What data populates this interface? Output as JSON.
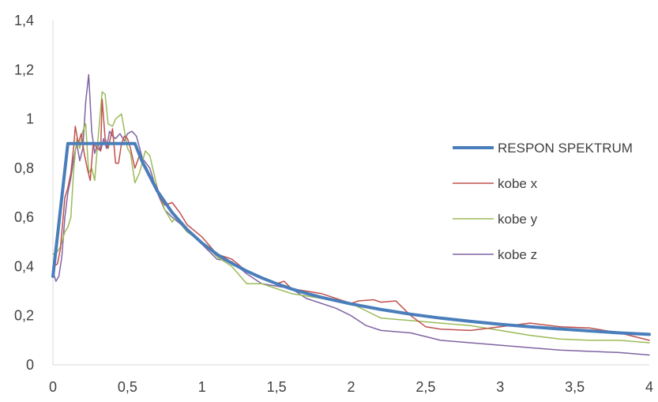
{
  "chart_data": {
    "type": "line",
    "title": "",
    "xlabel": "",
    "ylabel": "",
    "xlim": [
      0,
      4
    ],
    "ylim": [
      0,
      1.4
    ],
    "x_ticks": [
      "0",
      "0,5",
      "1",
      "1,5",
      "2",
      "2,5",
      "3",
      "3,5",
      "4"
    ],
    "x_tick_values": [
      0,
      0.5,
      1,
      1.5,
      2,
      2.5,
      3,
      3.5,
      4
    ],
    "y_ticks": [
      "0",
      "0,2",
      "0,4",
      "0,6",
      "0,8",
      "1",
      "1,2",
      "1,4"
    ],
    "y_tick_values": [
      0,
      0.2,
      0.4,
      0.6,
      0.8,
      1.0,
      1.2,
      1.4
    ],
    "grid": false,
    "legend_position": "right",
    "series": [
      {
        "name": "RESPON SPEKTRUM",
        "color": "#4a7ebb",
        "width": 4,
        "points": [
          [
            0,
            0.36
          ],
          [
            0.1,
            0.9
          ],
          [
            0.55,
            0.9
          ],
          [
            0.6,
            0.825
          ],
          [
            0.7,
            0.707
          ],
          [
            0.8,
            0.619
          ],
          [
            0.9,
            0.55
          ],
          [
            1.0,
            0.495
          ],
          [
            1.1,
            0.45
          ],
          [
            1.2,
            0.413
          ],
          [
            1.3,
            0.381
          ],
          [
            1.4,
            0.354
          ],
          [
            1.5,
            0.33
          ],
          [
            1.6,
            0.309
          ],
          [
            1.7,
            0.291
          ],
          [
            1.8,
            0.275
          ],
          [
            1.9,
            0.261
          ],
          [
            2.0,
            0.248
          ],
          [
            2.2,
            0.225
          ],
          [
            2.4,
            0.206
          ],
          [
            2.6,
            0.19
          ],
          [
            2.8,
            0.177
          ],
          [
            3.0,
            0.165
          ],
          [
            3.2,
            0.155
          ],
          [
            3.4,
            0.146
          ],
          [
            3.6,
            0.138
          ],
          [
            3.8,
            0.13
          ],
          [
            4.0,
            0.124
          ]
        ]
      },
      {
        "name": "kobe x",
        "color": "#c0504d",
        "width": 1.5,
        "points": [
          [
            0,
            0.4
          ],
          [
            0.03,
            0.41
          ],
          [
            0.05,
            0.47
          ],
          [
            0.08,
            0.68
          ],
          [
            0.1,
            0.72
          ],
          [
            0.12,
            0.78
          ],
          [
            0.14,
            0.89
          ],
          [
            0.15,
            0.97
          ],
          [
            0.17,
            0.9
          ],
          [
            0.19,
            0.94
          ],
          [
            0.21,
            0.86
          ],
          [
            0.23,
            0.8
          ],
          [
            0.25,
            0.75
          ],
          [
            0.27,
            0.9
          ],
          [
            0.3,
            0.88
          ],
          [
            0.32,
            0.87
          ],
          [
            0.33,
            1.08
          ],
          [
            0.35,
            0.92
          ],
          [
            0.37,
            0.88
          ],
          [
            0.4,
            0.96
          ],
          [
            0.42,
            0.82
          ],
          [
            0.44,
            0.82
          ],
          [
            0.46,
            0.9
          ],
          [
            0.48,
            0.93
          ],
          [
            0.5,
            0.92
          ],
          [
            0.52,
            0.88
          ],
          [
            0.55,
            0.8
          ],
          [
            0.58,
            0.85
          ],
          [
            0.6,
            0.83
          ],
          [
            0.63,
            0.8
          ],
          [
            0.66,
            0.76
          ],
          [
            0.7,
            0.72
          ],
          [
            0.72,
            0.68
          ],
          [
            0.75,
            0.65
          ],
          [
            0.8,
            0.66
          ],
          [
            0.85,
            0.62
          ],
          [
            0.9,
            0.57
          ],
          [
            1.0,
            0.52
          ],
          [
            1.1,
            0.45
          ],
          [
            1.2,
            0.43
          ],
          [
            1.3,
            0.38
          ],
          [
            1.4,
            0.35
          ],
          [
            1.5,
            0.33
          ],
          [
            1.55,
            0.34
          ],
          [
            1.6,
            0.31
          ],
          [
            1.7,
            0.3
          ],
          [
            1.8,
            0.29
          ],
          [
            1.9,
            0.27
          ],
          [
            2.0,
            0.25
          ],
          [
            2.05,
            0.26
          ],
          [
            2.15,
            0.265
          ],
          [
            2.2,
            0.255
          ],
          [
            2.3,
            0.26
          ],
          [
            2.4,
            0.2
          ],
          [
            2.5,
            0.155
          ],
          [
            2.6,
            0.145
          ],
          [
            2.8,
            0.14
          ],
          [
            3.0,
            0.155
          ],
          [
            3.2,
            0.17
          ],
          [
            3.4,
            0.155
          ],
          [
            3.6,
            0.15
          ],
          [
            3.8,
            0.13
          ],
          [
            4.0,
            0.1
          ]
        ]
      },
      {
        "name": "kobe y",
        "color": "#9bbb59",
        "width": 1.5,
        "points": [
          [
            0,
            0.45
          ],
          [
            0.03,
            0.46
          ],
          [
            0.05,
            0.48
          ],
          [
            0.08,
            0.54
          ],
          [
            0.1,
            0.56
          ],
          [
            0.12,
            0.6
          ],
          [
            0.14,
            0.8
          ],
          [
            0.16,
            0.92
          ],
          [
            0.18,
            0.88
          ],
          [
            0.2,
            0.95
          ],
          [
            0.22,
            0.98
          ],
          [
            0.24,
            0.78
          ],
          [
            0.26,
            0.8
          ],
          [
            0.28,
            0.75
          ],
          [
            0.3,
            0.9
          ],
          [
            0.33,
            1.11
          ],
          [
            0.35,
            1.1
          ],
          [
            0.37,
            0.98
          ],
          [
            0.4,
            0.97
          ],
          [
            0.42,
            1.0
          ],
          [
            0.44,
            1.01
          ],
          [
            0.46,
            1.02
          ],
          [
            0.48,
            0.95
          ],
          [
            0.5,
            0.88
          ],
          [
            0.52,
            0.86
          ],
          [
            0.55,
            0.74
          ],
          [
            0.58,
            0.78
          ],
          [
            0.62,
            0.87
          ],
          [
            0.65,
            0.85
          ],
          [
            0.7,
            0.72
          ],
          [
            0.75,
            0.63
          ],
          [
            0.8,
            0.58
          ],
          [
            0.82,
            0.6
          ],
          [
            0.9,
            0.54
          ],
          [
            1.0,
            0.5
          ],
          [
            1.1,
            0.44
          ],
          [
            1.2,
            0.4
          ],
          [
            1.3,
            0.33
          ],
          [
            1.4,
            0.33
          ],
          [
            1.5,
            0.31
          ],
          [
            1.6,
            0.29
          ],
          [
            1.7,
            0.28
          ],
          [
            1.8,
            0.27
          ],
          [
            1.9,
            0.26
          ],
          [
            2.0,
            0.25
          ],
          [
            2.1,
            0.22
          ],
          [
            2.2,
            0.19
          ],
          [
            2.4,
            0.18
          ],
          [
            2.6,
            0.17
          ],
          [
            2.8,
            0.16
          ],
          [
            3.0,
            0.14
          ],
          [
            3.2,
            0.12
          ],
          [
            3.4,
            0.105
          ],
          [
            3.6,
            0.1
          ],
          [
            3.8,
            0.1
          ],
          [
            4.0,
            0.09
          ]
        ]
      },
      {
        "name": "kobe z",
        "color": "#8064a2",
        "width": 1.5,
        "points": [
          [
            0,
            0.38
          ],
          [
            0.02,
            0.34
          ],
          [
            0.04,
            0.36
          ],
          [
            0.06,
            0.44
          ],
          [
            0.08,
            0.6
          ],
          [
            0.1,
            0.7
          ],
          [
            0.12,
            0.76
          ],
          [
            0.14,
            0.84
          ],
          [
            0.16,
            0.9
          ],
          [
            0.18,
            0.83
          ],
          [
            0.2,
            0.88
          ],
          [
            0.22,
            1.07
          ],
          [
            0.24,
            1.18
          ],
          [
            0.26,
            0.95
          ],
          [
            0.28,
            0.86
          ],
          [
            0.3,
            0.9
          ],
          [
            0.32,
            0.87
          ],
          [
            0.34,
            0.92
          ],
          [
            0.36,
            0.88
          ],
          [
            0.38,
            0.95
          ],
          [
            0.4,
            0.93
          ],
          [
            0.42,
            0.92
          ],
          [
            0.45,
            0.94
          ],
          [
            0.48,
            0.91
          ],
          [
            0.5,
            0.94
          ],
          [
            0.53,
            0.95
          ],
          [
            0.56,
            0.93
          ],
          [
            0.6,
            0.84
          ],
          [
            0.65,
            0.8
          ],
          [
            0.7,
            0.7
          ],
          [
            0.75,
            0.63
          ],
          [
            0.8,
            0.6
          ],
          [
            0.9,
            0.55
          ],
          [
            1.0,
            0.49
          ],
          [
            1.1,
            0.43
          ],
          [
            1.2,
            0.42
          ],
          [
            1.3,
            0.37
          ],
          [
            1.4,
            0.33
          ],
          [
            1.5,
            0.32
          ],
          [
            1.6,
            0.31
          ],
          [
            1.7,
            0.27
          ],
          [
            1.8,
            0.25
          ],
          [
            1.9,
            0.23
          ],
          [
            2.0,
            0.2
          ],
          [
            2.1,
            0.16
          ],
          [
            2.2,
            0.14
          ],
          [
            2.4,
            0.13
          ],
          [
            2.6,
            0.1
          ],
          [
            2.8,
            0.09
          ],
          [
            3.0,
            0.08
          ],
          [
            3.2,
            0.07
          ],
          [
            3.4,
            0.06
          ],
          [
            3.6,
            0.055
          ],
          [
            3.8,
            0.05
          ],
          [
            4.0,
            0.04
          ]
        ]
      }
    ]
  }
}
